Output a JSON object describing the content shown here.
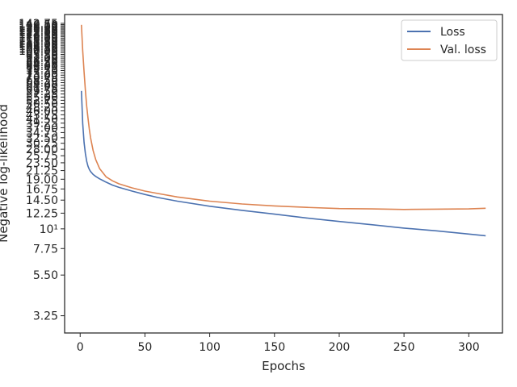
{
  "chart_data": {
    "type": "line",
    "title": "",
    "xlabel": "Epochs",
    "ylabel": "Negative log-likelihood",
    "xscale": "linear",
    "yscale": "log",
    "xlim": [
      -12,
      326
    ],
    "ylim": [
      2.6,
      160
    ],
    "grid": false,
    "legend_position": "top-right",
    "x_ticks": [
      0,
      50,
      100,
      150,
      200,
      250,
      300
    ],
    "y_ticks": [
      3.25,
      5.5,
      7.75,
      10,
      12.25,
      14.5,
      16.75,
      19.0,
      21.25,
      23.5,
      25.75,
      28.0,
      30.25,
      32.5,
      34.75,
      37.0,
      39.25,
      41.5,
      43.75,
      46.0,
      48.25,
      50.5,
      52.75,
      55.0,
      57.25,
      59.5,
      61.75,
      64.0,
      66.25,
      68.5,
      70.75,
      73.0,
      75.25,
      77.5,
      79.75,
      82.0,
      84.25,
      86.5,
      88.75,
      91.0,
      93.25,
      95.5,
      97.75,
      100.0,
      102.25,
      104.5,
      106.75,
      109.0,
      111.25,
      113.5,
      115.75,
      118.0,
      120.25,
      122.5,
      124.75,
      127.0,
      129.25,
      131.5,
      133.75,
      136.0,
      138.25,
      140.5,
      142.75
    ],
    "y_tick_labels": [
      "3.25",
      "5.50",
      "7.75",
      "10¹",
      "12.25",
      "14.50",
      "16.75",
      "19.00",
      "21.25",
      "23.50",
      "25.75",
      "28.00",
      "30.25",
      "32.50",
      "34.75",
      "37.00",
      "39.25",
      "41.50",
      "43.75",
      "46.00",
      "48.25",
      "50.50",
      "52.75",
      "55.00",
      "57.25",
      "59.50",
      "61.75",
      "64.00",
      "66.25",
      "68.50",
      "70.75",
      "73.00",
      "75.25",
      "77.50",
      "79.75",
      "82.00",
      "84.25",
      "86.50",
      "88.75",
      "91.00",
      "93.25",
      "95.50",
      "97.75",
      "100.00",
      "102.25",
      "104.50",
      "106.75",
      "109.00",
      "111.25",
      "113.50",
      "115.75",
      "118.00",
      "120.25",
      "122.50",
      "124.75",
      "127.00",
      "129.25",
      "131.50",
      "133.75",
      "136.00",
      "138.25",
      "140.50",
      "142.75"
    ],
    "series": [
      {
        "name": "Loss",
        "color": "#4c72b0",
        "x": [
          1,
          2,
          3,
          4,
          5,
          6,
          7,
          8,
          10,
          12,
          15,
          20,
          25,
          30,
          40,
          50,
          60,
          75,
          100,
          125,
          150,
          175,
          200,
          225,
          250,
          275,
          300,
          313
        ],
        "y": [
          59.5,
          39,
          30.5,
          26.5,
          24,
          22.5,
          21.6,
          21.0,
          20.2,
          19.7,
          19.1,
          18.3,
          17.6,
          17.1,
          16.3,
          15.6,
          15.0,
          14.3,
          13.4,
          12.7,
          12.1,
          11.5,
          11.0,
          10.55,
          10.1,
          9.75,
          9.35,
          9.15
        ]
      },
      {
        "name": "Val. loss",
        "color": "#dd8452",
        "x": [
          1,
          2,
          3,
          4,
          5,
          6,
          7,
          8,
          10,
          12,
          15,
          20,
          25,
          30,
          40,
          50,
          60,
          75,
          100,
          125,
          150,
          175,
          200,
          225,
          250,
          275,
          300,
          313
        ],
        "y": [
          140,
          100,
          76,
          60,
          49,
          42,
          36.5,
          32.5,
          27.5,
          24.5,
          21.8,
          19.6,
          18.6,
          17.9,
          17.0,
          16.3,
          15.8,
          15.1,
          14.3,
          13.8,
          13.45,
          13.2,
          13.0,
          12.95,
          12.85,
          12.9,
          12.95,
          13.05
        ]
      }
    ]
  }
}
